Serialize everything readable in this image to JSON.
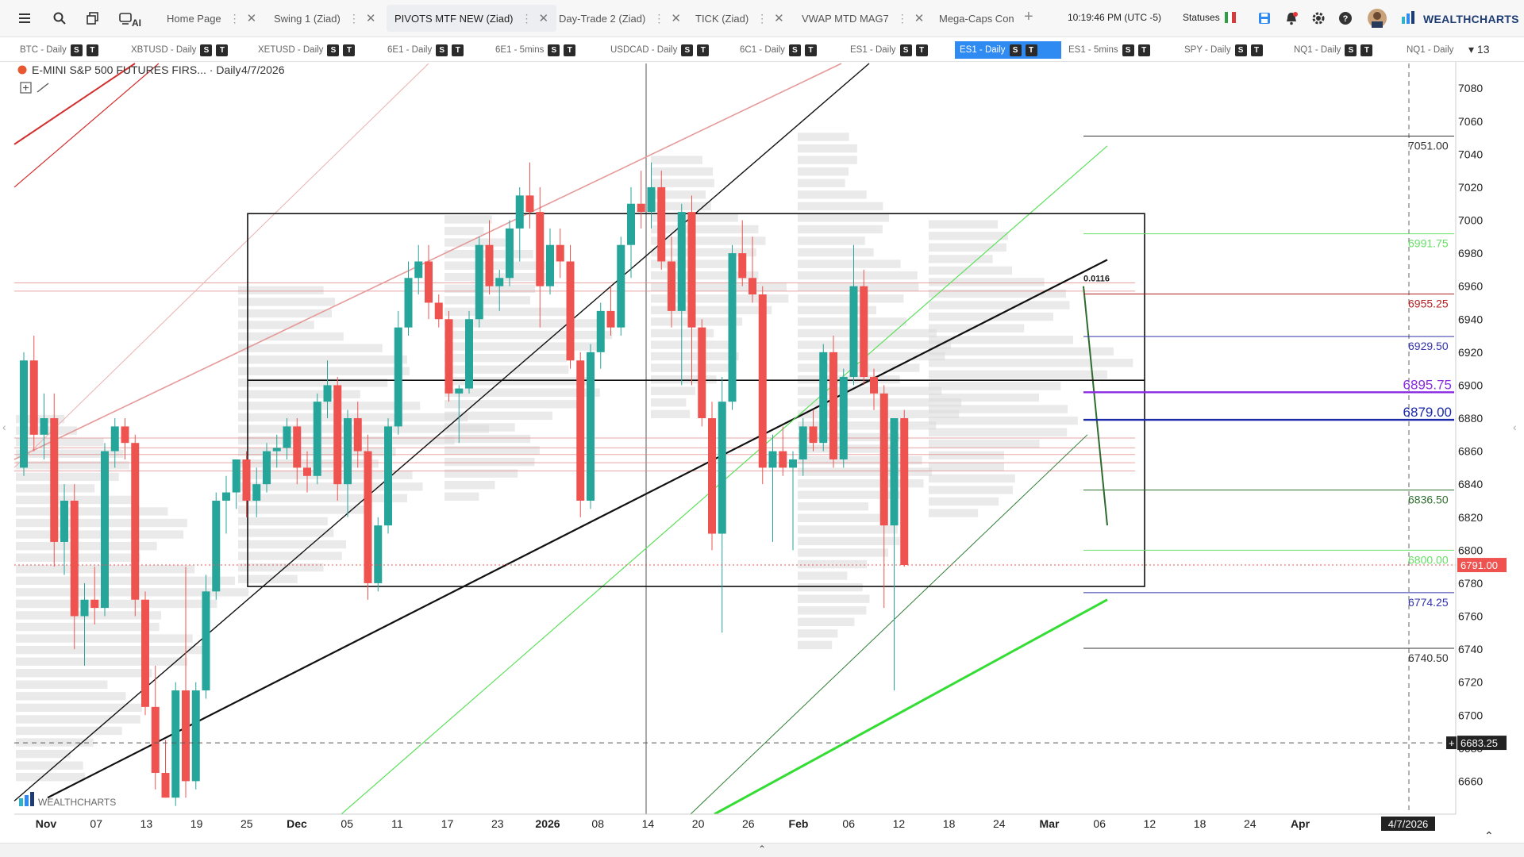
{
  "topbar": {
    "tabs": [
      {
        "label": "Home Page",
        "active": false,
        "dots": true
      },
      {
        "label": "Swing 1 (Ziad)",
        "active": false,
        "dots": true
      },
      {
        "label": "PIVOTS MTF NEW (Ziad)",
        "active": true,
        "dots": true
      },
      {
        "label": "Day-Trade 2 (Ziad)",
        "active": false,
        "dots": true
      },
      {
        "label": "TICK (Ziad)",
        "active": false,
        "dots": true
      },
      {
        "label": "VWAP MTD MAG7",
        "active": false,
        "dots": true
      },
      {
        "label": "Mega-Caps Con",
        "active": false,
        "dots": false
      }
    ],
    "ai_label": "AI",
    "clock": "10:19:46 PM  (UTC -5)",
    "statuses_label": "Statuses",
    "brand": "WEALTHCHARTS",
    "icons": [
      "menu-icon",
      "search-icon",
      "layers-icon",
      "ai-icon",
      "save-icon",
      "bell-icon",
      "gear-icon",
      "help-icon"
    ]
  },
  "symbolbar": {
    "items": [
      {
        "label": "BTC - Daily",
        "active": false
      },
      {
        "label": "XBTUSD - Daily",
        "active": false
      },
      {
        "label": "XETUSD - Daily",
        "active": false
      },
      {
        "label": "6E1 - Daily",
        "active": false
      },
      {
        "label": "6E1 - 5mins",
        "active": false
      },
      {
        "label": "USDCAD - Daily",
        "active": false
      },
      {
        "label": "6C1 - Daily",
        "active": false
      },
      {
        "label": "ES1 - Daily",
        "active": false
      },
      {
        "label": "ES1 - Daily",
        "active": true
      },
      {
        "label": "ES1 - 5mins",
        "active": false
      },
      {
        "label": "SPY - Daily",
        "active": false
      },
      {
        "label": "NQ1 - Daily",
        "active": false
      },
      {
        "label": "NQ1 - Daily",
        "active": false
      }
    ],
    "badge_s": "S",
    "badge_t": "T",
    "more_count": "13"
  },
  "chart": {
    "title": "E-MINI S&P 500 FUTURES FIRS... · Daily",
    "date": "4/7/2026",
    "watermark": "WEALTHCHARTS",
    "ohlc_label": "0.0116",
    "price_axis": {
      "min": 6640,
      "max": 7095,
      "ticks": [
        6660,
        6680,
        6700,
        6720,
        6740,
        6760,
        6780,
        6800,
        6820,
        6840,
        6860,
        6880,
        6900,
        6920,
        6940,
        6960,
        6980,
        7000,
        7020,
        7040,
        7060,
        7080
      ]
    },
    "time_labels": [
      {
        "text": "Nov",
        "bold": true
      },
      {
        "text": "07"
      },
      {
        "text": "13"
      },
      {
        "text": "19"
      },
      {
        "text": "25"
      },
      {
        "text": "Dec",
        "bold": true
      },
      {
        "text": "05"
      },
      {
        "text": "11"
      },
      {
        "text": "17"
      },
      {
        "text": "23"
      },
      {
        "text": "2026",
        "bold": true
      },
      {
        "text": "08"
      },
      {
        "text": "14"
      },
      {
        "text": "20"
      },
      {
        "text": "26"
      },
      {
        "text": "Feb",
        "bold": true
      },
      {
        "text": "06"
      },
      {
        "text": "12"
      },
      {
        "text": "18"
      },
      {
        "text": "24"
      },
      {
        "text": "Mar",
        "bold": true
      },
      {
        "text": "06"
      },
      {
        "text": "12"
      },
      {
        "text": "18"
      },
      {
        "text": "24"
      },
      {
        "text": "Apr",
        "bold": true
      }
    ],
    "current_date_label": "4/7/2026",
    "current_price": "6791.00",
    "crosshair_price": "6683.25",
    "levels": [
      {
        "price": 7051.0,
        "label": "7051.00",
        "color": "#333333",
        "size": 14
      },
      {
        "price": 6991.75,
        "label": "6991.75",
        "color": "#66e066",
        "size": 14
      },
      {
        "price": 6955.25,
        "label": "6955.25",
        "color": "#b22222",
        "size": 14
      },
      {
        "price": 6929.5,
        "label": "6929.50",
        "color": "#3333aa",
        "size": 14
      },
      {
        "price": 6895.75,
        "label": "6895.75",
        "color": "#8a2be2",
        "size": 17
      },
      {
        "price": 6879.0,
        "label": "6879.00",
        "color": "#1a2aa8",
        "size": 17
      },
      {
        "price": 6836.5,
        "label": "6836.50",
        "color": "#2f6f2f",
        "size": 14
      },
      {
        "price": 6800.0,
        "label": "6800.00",
        "color": "#66e066",
        "size": 14
      },
      {
        "price": 6774.25,
        "label": "6774.25",
        "color": "#3333aa",
        "size": 14
      },
      {
        "price": 6740.5,
        "label": "6740.50",
        "color": "#333333",
        "size": 14
      }
    ],
    "candles": [
      {
        "o": 6850,
        "h": 6920,
        "l": 6845,
        "c": 6915
      },
      {
        "o": 6915,
        "h": 6930,
        "l": 6860,
        "c": 6870
      },
      {
        "o": 6870,
        "h": 6895,
        "l": 6855,
        "c": 6880
      },
      {
        "o": 6880,
        "h": 6895,
        "l": 6790,
        "c": 6805
      },
      {
        "o": 6805,
        "h": 6840,
        "l": 6785,
        "c": 6830
      },
      {
        "o": 6830,
        "h": 6840,
        "l": 6740,
        "c": 6760
      },
      {
        "o": 6760,
        "h": 6780,
        "l": 6730,
        "c": 6770
      },
      {
        "o": 6770,
        "h": 6790,
        "l": 6755,
        "c": 6765
      },
      {
        "o": 6765,
        "h": 6865,
        "l": 6760,
        "c": 6860
      },
      {
        "o": 6860,
        "h": 6880,
        "l": 6850,
        "c": 6875
      },
      {
        "o": 6875,
        "h": 6880,
        "l": 6855,
        "c": 6865
      },
      {
        "o": 6865,
        "h": 6870,
        "l": 6760,
        "c": 6770
      },
      {
        "o": 6770,
        "h": 6775,
        "l": 6700,
        "c": 6705
      },
      {
        "o": 6705,
        "h": 6730,
        "l": 6655,
        "c": 6665
      },
      {
        "o": 6665,
        "h": 6685,
        "l": 6650,
        "c": 6650
      },
      {
        "o": 6650,
        "h": 6720,
        "l": 6645,
        "c": 6715
      },
      {
        "o": 6715,
        "h": 6790,
        "l": 6650,
        "c": 6660
      },
      {
        "o": 6660,
        "h": 6720,
        "l": 6655,
        "c": 6715
      },
      {
        "o": 6715,
        "h": 6785,
        "l": 6710,
        "c": 6775
      },
      {
        "o": 6775,
        "h": 6835,
        "l": 6770,
        "c": 6830
      },
      {
        "o": 6830,
        "h": 6845,
        "l": 6810,
        "c": 6835
      },
      {
        "o": 6835,
        "h": 6855,
        "l": 6825,
        "c": 6855
      },
      {
        "o": 6855,
        "h": 6860,
        "l": 6820,
        "c": 6830
      },
      {
        "o": 6830,
        "h": 6850,
        "l": 6820,
        "c": 6840
      },
      {
        "o": 6840,
        "h": 6865,
        "l": 6835,
        "c": 6860
      },
      {
        "o": 6860,
        "h": 6870,
        "l": 6850,
        "c": 6862
      },
      {
        "o": 6862,
        "h": 6880,
        "l": 6855,
        "c": 6875
      },
      {
        "o": 6875,
        "h": 6880,
        "l": 6840,
        "c": 6850
      },
      {
        "o": 6850,
        "h": 6860,
        "l": 6835,
        "c": 6845
      },
      {
        "o": 6845,
        "h": 6895,
        "l": 6840,
        "c": 6890
      },
      {
        "o": 6890,
        "h": 6915,
        "l": 6880,
        "c": 6900
      },
      {
        "o": 6900,
        "h": 6905,
        "l": 6830,
        "c": 6840
      },
      {
        "o": 6840,
        "h": 6885,
        "l": 6820,
        "c": 6880
      },
      {
        "o": 6880,
        "h": 6890,
        "l": 6850,
        "c": 6860
      },
      {
        "o": 6860,
        "h": 6870,
        "l": 6770,
        "c": 6780
      },
      {
        "o": 6780,
        "h": 6820,
        "l": 6775,
        "c": 6815
      },
      {
        "o": 6815,
        "h": 6880,
        "l": 6810,
        "c": 6875
      },
      {
        "o": 6875,
        "h": 6945,
        "l": 6870,
        "c": 6935
      },
      {
        "o": 6935,
        "h": 6975,
        "l": 6930,
        "c": 6965
      },
      {
        "o": 6965,
        "h": 6985,
        "l": 6955,
        "c": 6975
      },
      {
        "o": 6975,
        "h": 6985,
        "l": 6940,
        "c": 6950
      },
      {
        "o": 6950,
        "h": 6955,
        "l": 6935,
        "c": 6940
      },
      {
        "o": 6940,
        "h": 6945,
        "l": 6890,
        "c": 6895
      },
      {
        "o": 6895,
        "h": 6900,
        "l": 6865,
        "c": 6898
      },
      {
        "o": 6898,
        "h": 6945,
        "l": 6895,
        "c": 6940
      },
      {
        "o": 6940,
        "h": 6990,
        "l": 6935,
        "c": 6985
      },
      {
        "o": 6985,
        "h": 7000,
        "l": 6955,
        "c": 6960
      },
      {
        "o": 6960,
        "h": 6970,
        "l": 6945,
        "c": 6965
      },
      {
        "o": 6965,
        "h": 7000,
        "l": 6960,
        "c": 6995
      },
      {
        "o": 6995,
        "h": 7020,
        "l": 6975,
        "c": 7015
      },
      {
        "o": 7015,
        "h": 7035,
        "l": 6995,
        "c": 7005
      },
      {
        "o": 7005,
        "h": 7020,
        "l": 6935,
        "c": 6960
      },
      {
        "o": 6960,
        "h": 6995,
        "l": 6955,
        "c": 6985
      },
      {
        "o": 6985,
        "h": 6995,
        "l": 6965,
        "c": 6975
      },
      {
        "o": 6975,
        "h": 6985,
        "l": 6910,
        "c": 6915
      },
      {
        "o": 6915,
        "h": 6920,
        "l": 6820,
        "c": 6830
      },
      {
        "o": 6830,
        "h": 6925,
        "l": 6825,
        "c": 6920
      },
      {
        "o": 6920,
        "h": 6950,
        "l": 6910,
        "c": 6945
      },
      {
        "o": 6945,
        "h": 6960,
        "l": 6930,
        "c": 6935
      },
      {
        "o": 6935,
        "h": 6990,
        "l": 6930,
        "c": 6985
      },
      {
        "o": 6985,
        "h": 7020,
        "l": 6965,
        "c": 7010
      },
      {
        "o": 7010,
        "h": 7030,
        "l": 6995,
        "c": 7005
      },
      {
        "o": 7005,
        "h": 7035,
        "l": 6995,
        "c": 7020
      },
      {
        "o": 7020,
        "h": 7030,
        "l": 6970,
        "c": 6975
      },
      {
        "o": 6975,
        "h": 6990,
        "l": 6935,
        "c": 6945
      },
      {
        "o": 6945,
        "h": 7010,
        "l": 6900,
        "c": 7005
      },
      {
        "o": 7005,
        "h": 7015,
        "l": 6900,
        "c": 6935
      },
      {
        "o": 6935,
        "h": 6940,
        "l": 6875,
        "c": 6880
      },
      {
        "o": 6880,
        "h": 6890,
        "l": 6800,
        "c": 6810
      },
      {
        "o": 6810,
        "h": 6905,
        "l": 6750,
        "c": 6890
      },
      {
        "o": 6890,
        "h": 6985,
        "l": 6885,
        "c": 6980
      },
      {
        "o": 6980,
        "h": 7000,
        "l": 6960,
        "c": 6965
      },
      {
        "o": 6965,
        "h": 6990,
        "l": 6950,
        "c": 6955
      },
      {
        "o": 6955,
        "h": 6960,
        "l": 6840,
        "c": 6850
      },
      {
        "o": 6850,
        "h": 6870,
        "l": 6805,
        "c": 6860
      },
      {
        "o": 6860,
        "h": 6875,
        "l": 6845,
        "c": 6850
      },
      {
        "o": 6850,
        "h": 6860,
        "l": 6800,
        "c": 6855
      },
      {
        "o": 6855,
        "h": 6880,
        "l": 6845,
        "c": 6875
      },
      {
        "o": 6875,
        "h": 6885,
        "l": 6860,
        "c": 6865
      },
      {
        "o": 6865,
        "h": 6925,
        "l": 6860,
        "c": 6920
      },
      {
        "o": 6920,
        "h": 6930,
        "l": 6850,
        "c": 6855
      },
      {
        "o": 6855,
        "h": 6910,
        "l": 6850,
        "c": 6905
      },
      {
        "o": 6905,
        "h": 6985,
        "l": 6900,
        "c": 6960
      },
      {
        "o": 6960,
        "h": 6970,
        "l": 6900,
        "c": 6905
      },
      {
        "o": 6905,
        "h": 6910,
        "l": 6885,
        "c": 6895
      },
      {
        "o": 6895,
        "h": 6900,
        "l": 6765,
        "c": 6815
      },
      {
        "o": 6815,
        "h": 6880,
        "l": 6715,
        "c": 6880
      },
      {
        "o": 6880,
        "h": 6885,
        "l": 6790,
        "c": 6791
      }
    ]
  }
}
